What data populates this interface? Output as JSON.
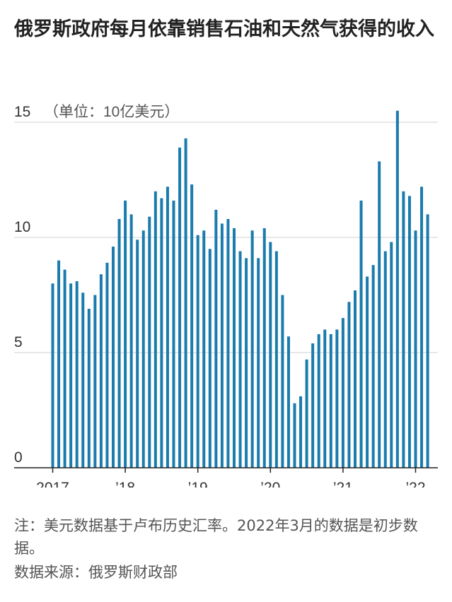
{
  "title": "俄罗斯政府每月依靠销售石油和天然气获得的收入",
  "note": "注：美元数据基于卢布历史汇率。2022年3月的数据是初步数据。",
  "source": "数据来源：俄罗斯财政部",
  "colors": {
    "bar": "#1a7bad",
    "grid": "#d0d0d0",
    "axis": "#222222",
    "text": "#333333"
  },
  "chart_data": {
    "type": "bar",
    "unit_label": "（单位：10亿美元）",
    "ylim": [
      0,
      15
    ],
    "yticks": [
      0,
      5,
      10,
      15
    ],
    "grid": true,
    "xtick_labels": [
      "2017",
      "’18",
      "’19",
      "’20",
      "’21",
      "’22"
    ],
    "series": [
      {
        "values": [
          8.0,
          9.0,
          8.6,
          8.0,
          8.1,
          7.6,
          6.9,
          7.5,
          8.4,
          8.9,
          9.6,
          10.8,
          11.6,
          11.0,
          9.9,
          10.3,
          10.9,
          12.0,
          11.7,
          12.2,
          11.6,
          13.9,
          14.3,
          12.3,
          10.1,
          10.3,
          9.5,
          11.2,
          10.6,
          10.8,
          10.4,
          9.4,
          9.1,
          10.3,
          9.1,
          10.4,
          9.8,
          9.4,
          7.5,
          5.7,
          2.8,
          3.1,
          4.7,
          5.4,
          5.8,
          6.0,
          5.8,
          6.0,
          6.5,
          7.2,
          7.7,
          11.6,
          8.3,
          8.8,
          13.3,
          9.4,
          9.8,
          15.5,
          12.0,
          11.8,
          10.3,
          12.2,
          11.0
        ]
      }
    ]
  }
}
